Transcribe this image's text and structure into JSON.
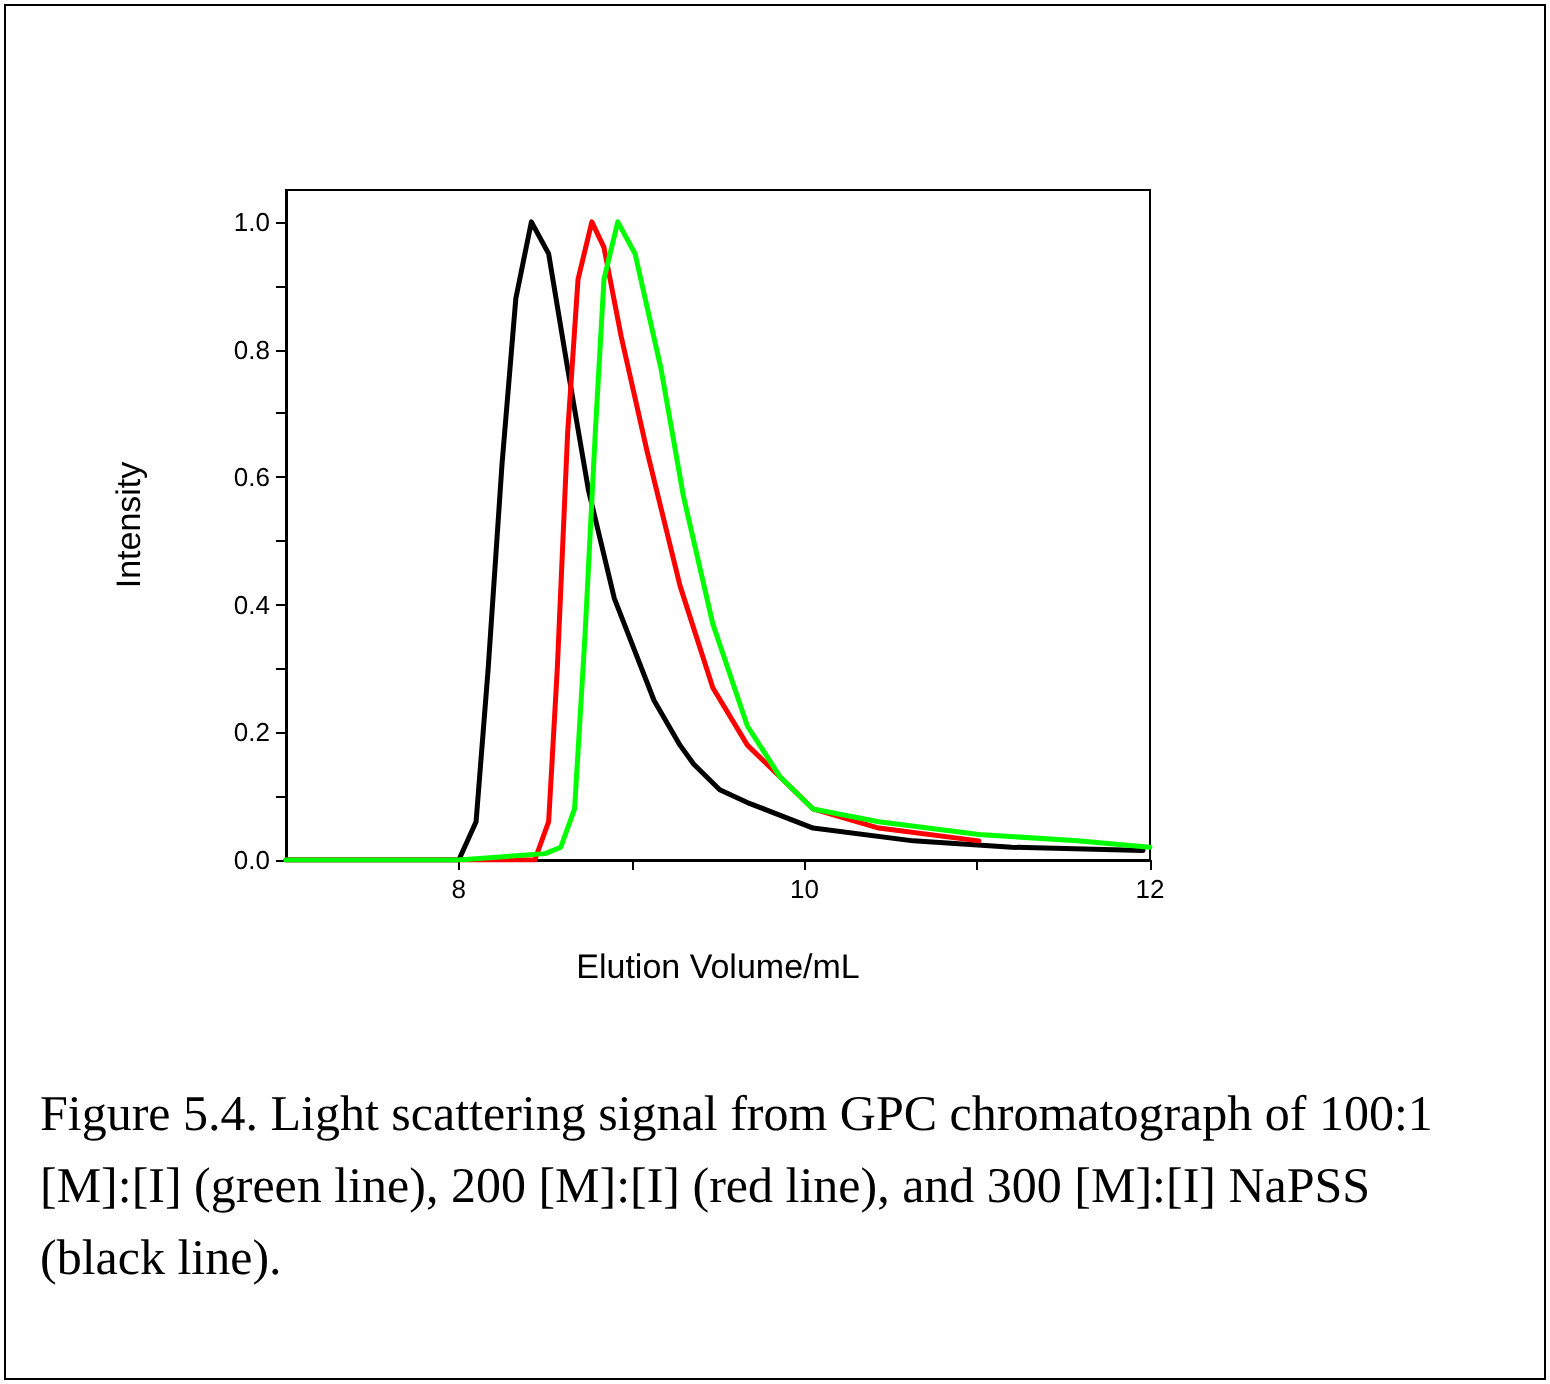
{
  "chart_data": {
    "type": "line",
    "xlabel": "Elution Volume/mL",
    "ylabel": "Intensity",
    "annotations": [
      "Figure 5.4. Light scattering signal from GPC chromatograph of 100:1 [M]:[I] (green line), 200 [M]:[I] (red line), and 300 [M]:[I] NaPSS (black line)."
    ],
    "xlim": [
      7,
      12
    ],
    "ylim": [
      0,
      1.05
    ],
    "xticks": [
      8,
      {
        "value": 9,
        "label": null
      },
      10,
      {
        "value": 11,
        "label": null
      },
      12
    ],
    "yticks": [
      {
        "value": 0,
        "label": "0.0"
      },
      {
        "value": 0.1,
        "label": null
      },
      {
        "value": 0.2,
        "label": "0.2"
      },
      {
        "value": 0.3,
        "label": null
      },
      {
        "value": 0.4,
        "label": "0.4"
      },
      {
        "value": 0.5,
        "label": null
      },
      {
        "value": 0.6,
        "label": "0.6"
      },
      {
        "value": 0.7,
        "label": null
      },
      {
        "value": 0.8,
        "label": "0.8"
      },
      {
        "value": 0.9,
        "label": null
      },
      {
        "value": 1,
        "label": "1.0"
      }
    ],
    "grid": false,
    "legend": false,
    "marker": "none",
    "line_style": "solid",
    "series": [
      {
        "color": "#000000",
        "x": [
          7,
          7.5,
          8,
          8.1,
          8.17,
          8.25,
          8.33,
          8.42,
          8.52,
          8.63,
          8.75,
          8.9,
          9.13,
          9.28,
          9.36,
          9.51,
          9.67,
          10.05,
          10.63,
          11.2,
          11.96
        ],
        "values": [
          0,
          0,
          0,
          0.06,
          0.3,
          0.62,
          0.88,
          1,
          0.95,
          0.77,
          0.58,
          0.41,
          0.25,
          0.18,
          0.15,
          0.11,
          0.09,
          0.05,
          0.03,
          0.02,
          0.015
        ]
      },
      {
        "color": "#ff0000",
        "x": [
          7,
          8,
          8.44,
          8.52,
          8.57,
          8.63,
          8.69,
          8.77,
          8.84,
          8.94,
          9.09,
          9.28,
          9.47,
          9.67,
          10.05,
          10.43,
          11.01
        ],
        "values": [
          0,
          0,
          0,
          0.06,
          0.3,
          0.67,
          0.91,
          1,
          0.96,
          0.82,
          0.64,
          0.43,
          0.27,
          0.18,
          0.08,
          0.05,
          0.03
        ]
      },
      {
        "color": "#00ff00",
        "x": [
          7,
          8,
          8.5,
          8.59,
          8.67,
          8.73,
          8.79,
          8.84,
          8.92,
          9.02,
          9.17,
          9.3,
          9.47,
          9.67,
          9.86,
          10.05,
          10.43,
          11.01,
          11.58,
          12
        ],
        "values": [
          0,
          0,
          0.01,
          0.02,
          0.08,
          0.35,
          0.67,
          0.91,
          1,
          0.95,
          0.77,
          0.57,
          0.37,
          0.21,
          0.13,
          0.08,
          0.06,
          0.04,
          0.03,
          0.02
        ]
      }
    ]
  }
}
